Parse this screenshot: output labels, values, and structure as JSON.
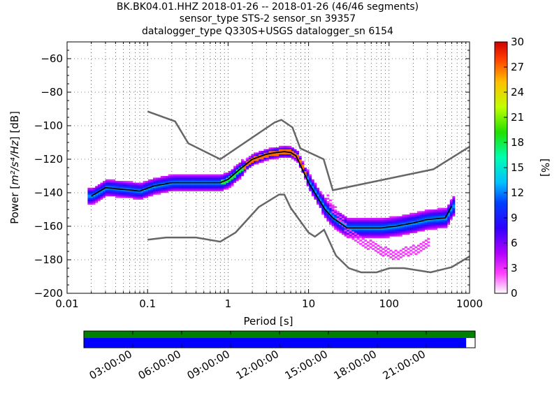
{
  "chart_data": {
    "type": "heatmap",
    "title_lines": [
      "BK.BK04.01.HHZ   2018-01-26 -- 2018-01-26  (46/46 segments)",
      "sensor_type STS-2 sensor_sn 39357",
      "datalogger_type Q330S+USGS datalogger_sn 6154"
    ],
    "xlabel": "Period [s]",
    "ylabel_prefix": "Power [",
    "ylabel_math": "m²/s⁴/Hz",
    "ylabel_suffix": "] [dB]",
    "x_scale": "log",
    "xlim": [
      0.01,
      1000
    ],
    "ylim": [
      -200,
      -50
    ],
    "x_ticks": [
      0.01,
      0.1,
      1,
      10,
      100,
      1000
    ],
    "x_tick_labels": [
      "0.01",
      "0.1",
      "1",
      "10",
      "100",
      "1000"
    ],
    "y_ticks": [
      -200,
      -180,
      -160,
      -140,
      -120,
      -100,
      -80,
      -60
    ],
    "y_tick_labels": [
      "−200",
      "−180",
      "−160",
      "−140",
      "−120",
      "−100",
      "−80",
      "−60"
    ],
    "grid": "dotted",
    "colorbar": {
      "label": "[%]",
      "range": [
        0,
        30
      ],
      "ticks": [
        0,
        3,
        6,
        9,
        12,
        15,
        18,
        21,
        24,
        27,
        30
      ],
      "tick_labels": [
        "0",
        "3",
        "6",
        "9",
        "12",
        "15",
        "18",
        "21",
        "24",
        "27",
        "30"
      ]
    },
    "noise_models": {
      "nhnm": {
        "x": [
          0.1,
          0.22,
          0.32,
          0.8,
          3.8,
          4.6,
          6.3,
          7.9,
          15.4,
          20,
          354.8,
          1000
        ],
        "y": [
          -91.5,
          -97.4,
          -110.5,
          -120,
          -98,
          -96.5,
          -101,
          -113.5,
          -120,
          -138.5,
          -126,
          -112.5
        ]
      },
      "nlnm": {
        "x": [
          0.1,
          0.17,
          0.4,
          0.8,
          1.24,
          2.4,
          4.3,
          5.0,
          6.0,
          10,
          12,
          15.6,
          21.9,
          31.6,
          45,
          70,
          101,
          154,
          328,
          600,
          1000
        ],
        "y": [
          -168,
          -166.7,
          -166.7,
          -169.2,
          -163.7,
          -148.6,
          -141.1,
          -141.1,
          -149,
          -163.8,
          -166.2,
          -162.1,
          -177.5,
          -185,
          -187.5,
          -187.5,
          -185,
          -185,
          -187.5,
          -184.4,
          -178
        ]
      }
    },
    "mean_curve": {
      "x": [
        0.02,
        0.03,
        0.05,
        0.08,
        0.12,
        0.2,
        0.3,
        0.5,
        0.8,
        1.0,
        1.4,
        2,
        3,
        4,
        5,
        6,
        7,
        8,
        10,
        13,
        16,
        20,
        30,
        50,
        80,
        120,
        200,
        300,
        500,
        600
      ],
      "y": [
        -142,
        -137,
        -138,
        -139,
        -136,
        -134,
        -134,
        -134,
        -134,
        -132,
        -126,
        -120,
        -117,
        -116,
        -115.5,
        -116,
        -118,
        -124,
        -134,
        -143,
        -150,
        -155,
        -161,
        -161,
        -161,
        -160,
        -158,
        -156,
        -155,
        -148
      ]
    },
    "secondary_band": {
      "x": [
        16,
        20,
        30,
        50,
        80,
        120,
        200,
        300
      ],
      "y": [
        -143,
        -150,
        -163,
        -170,
        -175,
        -177,
        -174,
        -170
      ]
    },
    "availability": {
      "time_ticks": [
        "03:00:00",
        "06:00:00",
        "09:00:00",
        "12:00:00",
        "15:00:00",
        "18:00:00",
        "21:00:00"
      ],
      "coverage_fraction": 0.977,
      "colors": {
        "top_bar": "#008000",
        "data_bar": "#0000ff"
      }
    }
  }
}
